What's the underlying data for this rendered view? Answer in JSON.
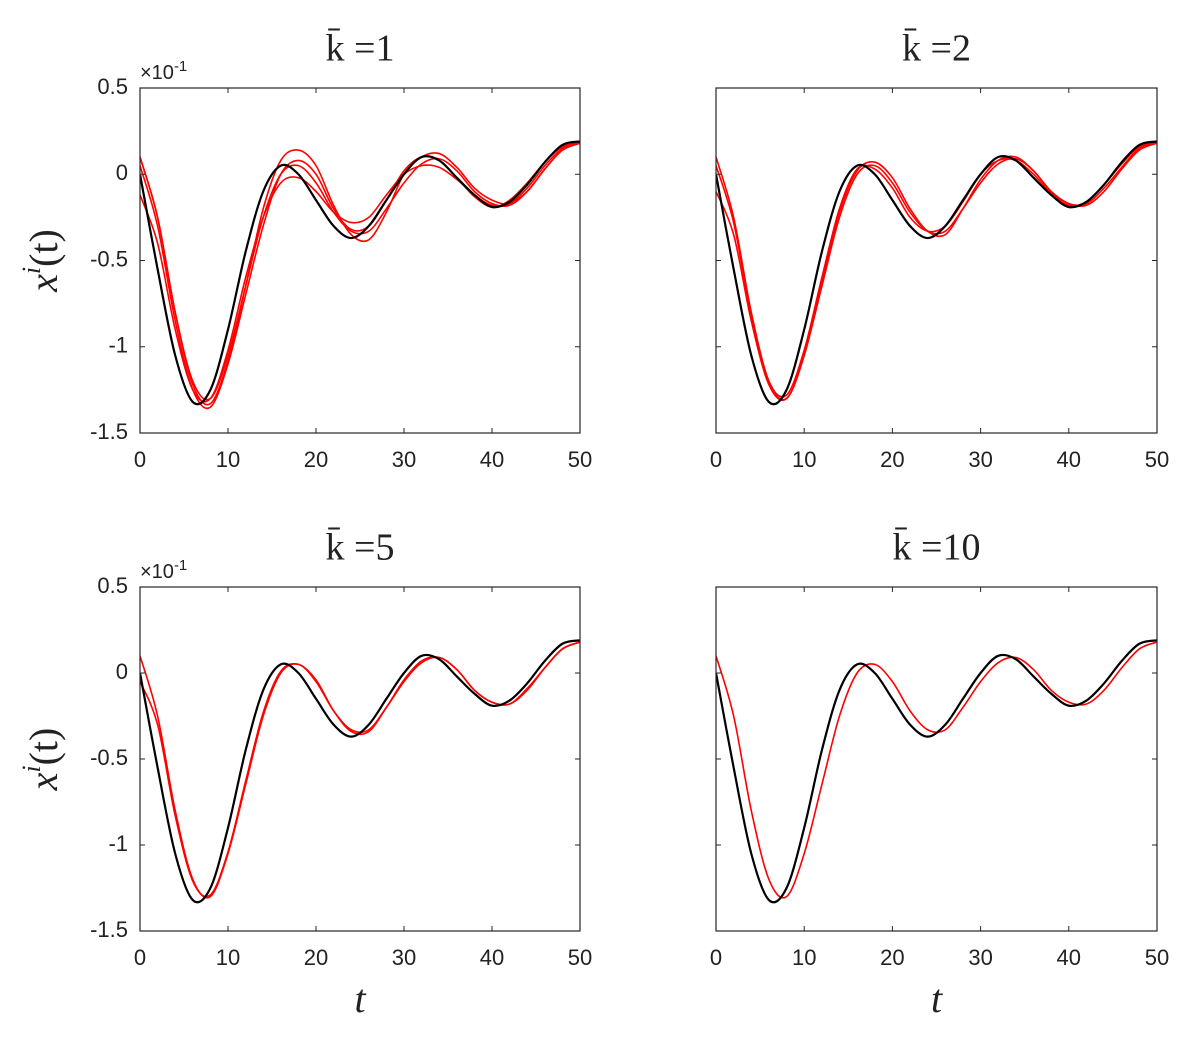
{
  "chart_data": [
    {
      "type": "line",
      "title": "k̄ =1",
      "axis_exponent": {
        "base": "×10",
        "power": "-1"
      },
      "ylabel": {
        "base": "x",
        "sup": "i",
        "rest": "(t)"
      },
      "ytick_labels": true,
      "x": [
        0,
        2,
        4,
        6,
        8,
        10,
        12,
        14,
        16,
        18,
        20,
        22,
        24,
        26,
        28,
        30,
        32,
        34,
        36,
        38,
        40,
        42,
        44,
        46,
        48,
        50
      ],
      "xlim": [
        0,
        50
      ],
      "xticks": [
        0,
        10,
        20,
        30,
        40,
        50
      ],
      "ylim": [
        -1.5,
        0.5
      ],
      "yticks": [
        0.5,
        0,
        -0.5,
        -1,
        -1.5
      ],
      "series": [
        {
          "color": "#ff0000",
          "values": [
            0.1,
            -0.25,
            -0.8,
            -1.22,
            -1.33,
            -1.08,
            -0.65,
            -0.2,
            0.08,
            0.14,
            0.05,
            -0.18,
            -0.35,
            -0.38,
            -0.22,
            0.0,
            0.1,
            0.12,
            0.04,
            -0.08,
            -0.15,
            -0.17,
            -0.1,
            0.03,
            0.14,
            0.18
          ]
        },
        {
          "color": "#ff0000",
          "values": [
            -0.12,
            -0.4,
            -0.9,
            -1.25,
            -1.3,
            -1.02,
            -0.6,
            -0.25,
            -0.05,
            -0.02,
            -0.1,
            -0.22,
            -0.28,
            -0.25,
            -0.12,
            0.0,
            0.05,
            0.04,
            -0.03,
            -0.12,
            -0.18,
            -0.17,
            -0.08,
            0.05,
            0.15,
            0.19
          ]
        },
        {
          "color": "#ff0000",
          "values": [
            0.05,
            -0.3,
            -0.85,
            -1.25,
            -1.35,
            -1.1,
            -0.7,
            -0.3,
            0.0,
            0.08,
            0.0,
            -0.2,
            -0.32,
            -0.3,
            -0.15,
            0.02,
            0.1,
            0.08,
            -0.02,
            -0.13,
            -0.19,
            -0.15,
            -0.05,
            0.07,
            0.16,
            0.18
          ]
        },
        {
          "color": "#ff0000",
          "values": [
            0.1,
            -0.25,
            -0.8,
            -1.2,
            -1.3,
            -1.05,
            -0.65,
            -0.25,
            0.0,
            0.05,
            -0.05,
            -0.22,
            -0.33,
            -0.33,
            -0.2,
            -0.05,
            0.06,
            0.09,
            0.02,
            -0.1,
            -0.17,
            -0.18,
            -0.1,
            0.03,
            0.14,
            0.18
          ]
        },
        {
          "color": "#000000",
          "values": [
            0,
            -0.55,
            -1.05,
            -1.32,
            -1.25,
            -0.9,
            -0.45,
            -0.1,
            0.05,
            0.0,
            -0.15,
            -0.3,
            -0.37,
            -0.3,
            -0.15,
            0.0,
            0.1,
            0.08,
            -0.02,
            -0.12,
            -0.19,
            -0.16,
            -0.06,
            0.07,
            0.17,
            0.19
          ]
        }
      ]
    },
    {
      "type": "line",
      "title": "k̄ =2",
      "ytick_labels": false,
      "x": [
        0,
        2,
        4,
        6,
        8,
        10,
        12,
        14,
        16,
        18,
        20,
        22,
        24,
        26,
        28,
        30,
        32,
        34,
        36,
        38,
        40,
        42,
        44,
        46,
        48,
        50
      ],
      "xlim": [
        0,
        50
      ],
      "xticks": [
        0,
        10,
        20,
        30,
        40,
        50
      ],
      "ylim": [
        -1.5,
        0.5
      ],
      "yticks": [
        0.5,
        0,
        -0.5,
        -1,
        -1.5
      ],
      "series": [
        {
          "color": "#ff0000",
          "values": [
            -0.1,
            -0.35,
            -0.85,
            -1.22,
            -1.3,
            -1.05,
            -0.62,
            -0.22,
            0.02,
            0.07,
            -0.02,
            -0.2,
            -0.33,
            -0.35,
            -0.2,
            -0.03,
            0.08,
            0.1,
            0.02,
            -0.1,
            -0.17,
            -0.17,
            -0.08,
            0.04,
            0.15,
            0.18
          ]
        },
        {
          "color": "#ff0000",
          "values": [
            0.05,
            -0.28,
            -0.82,
            -1.2,
            -1.28,
            -1.02,
            -0.6,
            -0.2,
            0.03,
            0.03,
            -0.08,
            -0.25,
            -0.33,
            -0.3,
            -0.16,
            0.0,
            0.08,
            0.08,
            0.0,
            -0.11,
            -0.18,
            -0.16,
            -0.06,
            0.06,
            0.16,
            0.18
          ]
        },
        {
          "color": "#ff0000",
          "values": [
            0.1,
            -0.25,
            -0.8,
            -1.2,
            -1.3,
            -1.05,
            -0.65,
            -0.25,
            0.0,
            0.05,
            -0.05,
            -0.22,
            -0.33,
            -0.33,
            -0.2,
            -0.05,
            0.06,
            0.09,
            0.02,
            -0.1,
            -0.17,
            -0.18,
            -0.1,
            0.03,
            0.14,
            0.18
          ]
        },
        {
          "color": "#000000",
          "values": [
            0,
            -0.55,
            -1.05,
            -1.32,
            -1.25,
            -0.9,
            -0.45,
            -0.1,
            0.05,
            0.0,
            -0.15,
            -0.3,
            -0.37,
            -0.3,
            -0.15,
            0.0,
            0.1,
            0.08,
            -0.02,
            -0.12,
            -0.19,
            -0.16,
            -0.06,
            0.07,
            0.17,
            0.19
          ]
        }
      ]
    },
    {
      "type": "line",
      "title": "k̄ =5",
      "axis_exponent": {
        "base": "×10",
        "power": "-1"
      },
      "ylabel": {
        "base": "x",
        "sup": "i",
        "rest": "(t)"
      },
      "xlabel": "t",
      "ytick_labels": true,
      "x": [
        0,
        2,
        4,
        6,
        8,
        10,
        12,
        14,
        16,
        18,
        20,
        22,
        24,
        26,
        28,
        30,
        32,
        34,
        36,
        38,
        40,
        42,
        44,
        46,
        48,
        50
      ],
      "xlim": [
        0,
        50
      ],
      "xticks": [
        0,
        10,
        20,
        30,
        40,
        50
      ],
      "ylim": [
        -1.5,
        0.5
      ],
      "yticks": [
        0.5,
        0,
        -0.5,
        -1,
        -1.5
      ],
      "series": [
        {
          "color": "#ff0000",
          "values": [
            -0.05,
            -0.3,
            -0.83,
            -1.21,
            -1.29,
            -1.04,
            -0.63,
            -0.23,
            0.01,
            0.05,
            -0.04,
            -0.22,
            -0.34,
            -0.34,
            -0.2,
            -0.04,
            0.07,
            0.09,
            0.02,
            -0.1,
            -0.17,
            -0.18,
            -0.09,
            0.03,
            0.14,
            0.18
          ]
        },
        {
          "color": "#ff0000",
          "values": [
            0.1,
            -0.25,
            -0.8,
            -1.2,
            -1.3,
            -1.05,
            -0.65,
            -0.25,
            0.0,
            0.05,
            -0.05,
            -0.22,
            -0.33,
            -0.33,
            -0.2,
            -0.05,
            0.06,
            0.09,
            0.02,
            -0.1,
            -0.17,
            -0.18,
            -0.1,
            0.03,
            0.14,
            0.18
          ]
        },
        {
          "color": "#000000",
          "values": [
            0,
            -0.55,
            -1.05,
            -1.32,
            -1.25,
            -0.9,
            -0.45,
            -0.1,
            0.05,
            0.0,
            -0.15,
            -0.3,
            -0.37,
            -0.3,
            -0.15,
            0.0,
            0.1,
            0.08,
            -0.02,
            -0.12,
            -0.19,
            -0.16,
            -0.06,
            0.07,
            0.17,
            0.19
          ]
        }
      ]
    },
    {
      "type": "line",
      "title": "k̄ =10",
      "xlabel": "t",
      "ytick_labels": false,
      "x": [
        0,
        2,
        4,
        6,
        8,
        10,
        12,
        14,
        16,
        18,
        20,
        22,
        24,
        26,
        28,
        30,
        32,
        34,
        36,
        38,
        40,
        42,
        44,
        46,
        48,
        50
      ],
      "xlim": [
        0,
        50
      ],
      "xticks": [
        0,
        10,
        20,
        30,
        40,
        50
      ],
      "ylim": [
        -1.5,
        0.5
      ],
      "yticks": [
        0.5,
        0,
        -0.5,
        -1,
        -1.5
      ],
      "series": [
        {
          "color": "#ff0000",
          "values": [
            0.1,
            -0.25,
            -0.8,
            -1.2,
            -1.3,
            -1.05,
            -0.65,
            -0.25,
            0.0,
            0.05,
            -0.05,
            -0.22,
            -0.33,
            -0.33,
            -0.2,
            -0.05,
            0.06,
            0.09,
            0.02,
            -0.1,
            -0.17,
            -0.18,
            -0.1,
            0.03,
            0.14,
            0.18
          ]
        },
        {
          "color": "#000000",
          "values": [
            0,
            -0.55,
            -1.05,
            -1.32,
            -1.25,
            -0.9,
            -0.45,
            -0.1,
            0.05,
            0.0,
            -0.15,
            -0.3,
            -0.37,
            -0.3,
            -0.15,
            0.0,
            0.1,
            0.08,
            -0.02,
            -0.12,
            -0.19,
            -0.16,
            -0.06,
            0.07,
            0.17,
            0.19
          ]
        }
      ]
    }
  ]
}
